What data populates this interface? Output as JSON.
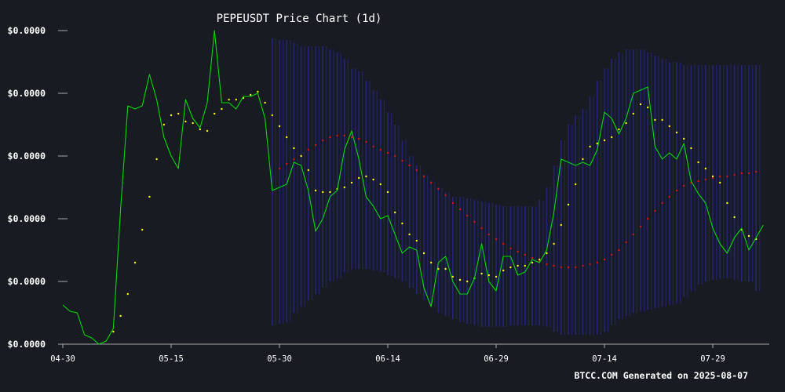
{
  "chart_data": {
    "type": "line",
    "title": "PEPEUSDT Price Chart (1d)",
    "footer": "BTCC.COM Generated on 2025-08-07",
    "xlabel": "",
    "ylabel": "",
    "x_ticks": [
      "04-30",
      "05-15",
      "05-30",
      "06-14",
      "06-29",
      "07-14",
      "07-29"
    ],
    "y_ticks": [
      "$0.0000",
      "$0.0000",
      "$0.0000",
      "$0.0000",
      "$0.0000",
      "$0.0000"
    ],
    "x_range": [
      "2025-04-30",
      "2025-08-09"
    ],
    "y_range": [
      0,
      100
    ],
    "grid": false,
    "colors": {
      "background": "#181b22",
      "price": "#00dd00",
      "ma_short": "#ffff00",
      "ma_long": "#dd1111",
      "band": "#23237a",
      "text": "#ffffff",
      "axis": "#aaaaaa"
    },
    "series": [
      {
        "values": [
          12.5,
          10.5,
          10.0,
          3.0,
          2.0,
          0.0,
          1.0,
          5.0,
          43.0,
          76.0,
          75.0,
          76.0,
          86.0,
          78.0,
          66.0,
          60.0,
          56.0,
          78.0,
          72.0,
          69.0,
          77.0,
          100.0,
          77.0,
          77.0,
          75.0,
          79.0,
          79.0,
          80.0,
          72.0,
          49.0,
          50.0,
          51.0,
          58.0,
          57.0,
          49.0,
          36.0,
          40.0,
          47.0,
          49.0,
          62.0,
          68.0,
          59.0,
          47.0,
          44.0,
          40.0,
          41.0,
          35.0,
          29.0,
          31.0,
          30.0,
          18.0,
          12.0,
          26.0,
          28.0,
          20.0,
          16.0,
          16.0,
          21.0,
          32.0,
          20.0,
          17.0,
          28.0,
          28.0,
          22.0,
          23.0,
          27.0,
          26.0,
          30.0,
          42.0,
          59.0,
          58.0,
          57.0,
          58.0,
          57.0,
          62.0,
          74.0,
          72.0,
          67.0,
          72.0,
          80.0,
          81.0,
          82.0,
          63.0,
          59.0,
          61.0,
          59.0,
          64.0,
          52.0,
          48.0,
          45.0,
          37.0,
          32.0,
          29.0,
          34.0,
          37.0,
          30.0,
          34.0,
          38.0
        ]
      },
      {
        "values": [
          null,
          null,
          null,
          null,
          null,
          null,
          null,
          4.0,
          9.0,
          16.0,
          26.0,
          36.5,
          47.0,
          59.0,
          70.0,
          73.0,
          73.5,
          71.0,
          70.5,
          68.5,
          68.0,
          73.5,
          75.0,
          78.0,
          78.0,
          78.5,
          79.5,
          80.5,
          77.0,
          73.0,
          69.5,
          66.0,
          62.5,
          60.0,
          55.5,
          49.0,
          48.5,
          48.5,
          49.5,
          50.0,
          51.5,
          53.0,
          53.5,
          52.5,
          51.0,
          48.5,
          42.0,
          38.5,
          35.0,
          33.0,
          29.0,
          26.0,
          24.0,
          24.0,
          21.5,
          20.5,
          20.0,
          21.0,
          22.5,
          22.0,
          21.5,
          23.5,
          24.5,
          25.0,
          25.0,
          26.0,
          27.0,
          29.0,
          32.0,
          38.0,
          44.5,
          51.0,
          59.0,
          63.0,
          64.0,
          65.0,
          66.0,
          68.5,
          70.5,
          73.5,
          76.5,
          75.5,
          71.5,
          71.5,
          69.5,
          67.5,
          65.5,
          62.5,
          58.0,
          56.0,
          53.5,
          51.5,
          45.0,
          40.5,
          36.5,
          34.5,
          33.5
        ]
      },
      {
        "values": [
          null,
          null,
          null,
          null,
          null,
          null,
          null,
          null,
          null,
          null,
          null,
          null,
          null,
          null,
          null,
          null,
          null,
          null,
          null,
          null,
          null,
          null,
          null,
          null,
          null,
          null,
          null,
          null,
          null,
          null,
          56.0,
          57.5,
          59.0,
          60.0,
          62.0,
          63.5,
          65.0,
          66.0,
          66.5,
          66.5,
          66.0,
          65.5,
          64.5,
          63.0,
          62.0,
          61.0,
          60.0,
          58.5,
          57.0,
          55.5,
          53.5,
          51.5,
          49.5,
          47.5,
          45.0,
          43.0,
          41.0,
          39.0,
          37.0,
          35.0,
          33.5,
          32.0,
          30.5,
          29.5,
          28.5,
          27.5,
          26.5,
          25.5,
          25.0,
          24.5,
          24.5,
          24.5,
          25.0,
          25.5,
          26.0,
          27.0,
          28.5,
          30.0,
          32.5,
          35.0,
          37.5,
          40.0,
          42.5,
          45.0,
          47.0,
          49.0,
          50.5,
          51.5,
          52.0,
          52.5,
          53.0,
          53.5,
          53.5,
          54.0,
          54.5,
          54.5,
          55.0
        ]
      }
    ],
    "band": {
      "upper": [
        null,
        null,
        null,
        null,
        null,
        null,
        null,
        null,
        null,
        null,
        null,
        null,
        null,
        null,
        null,
        null,
        null,
        null,
        null,
        null,
        null,
        null,
        null,
        null,
        null,
        null,
        null,
        null,
        null,
        97.5,
        97.0,
        97.0,
        96.0,
        95.0,
        95.0,
        95.0,
        95.0,
        94.0,
        93.0,
        91.0,
        88.0,
        87.0,
        84.0,
        81.0,
        78.0,
        74.0,
        70.0,
        65.0,
        60.0,
        57.0,
        54.0,
        52.0,
        50.0,
        48.5,
        47.0,
        47.0,
        46.5,
        46.0,
        45.5,
        45.0,
        44.5,
        44.0,
        44.0,
        44.0,
        44.0,
        44.0,
        46.0,
        50.0,
        57.0,
        65.0,
        70.0,
        73.0,
        75.0,
        79.0,
        84.0,
        88.0,
        91.0,
        93.0,
        94.0,
        94.0,
        94.0,
        93.0,
        92.0,
        91.0,
        90.0,
        90.0,
        89.0,
        89.0,
        89.0,
        89.0,
        89.0,
        89.0,
        89.0,
        89.0,
        89.0,
        89.0,
        89.0
      ],
      "lower": [
        null,
        null,
        null,
        null,
        null,
        null,
        null,
        null,
        null,
        null,
        null,
        null,
        null,
        null,
        null,
        null,
        null,
        null,
        null,
        null,
        null,
        null,
        null,
        null,
        null,
        null,
        null,
        null,
        null,
        6.0,
        6.5,
        7.0,
        10.0,
        12.0,
        14.0,
        16.0,
        18.0,
        20.0,
        21.0,
        23.0,
        24.0,
        24.0,
        24.0,
        23.5,
        23.0,
        22.0,
        21.0,
        20.0,
        18.0,
        16.0,
        14.0,
        12.0,
        10.0,
        9.0,
        8.0,
        7.0,
        6.5,
        6.0,
        5.5,
        5.5,
        5.5,
        5.5,
        6.0,
        6.0,
        6.0,
        6.0,
        6.0,
        5.5,
        4.0,
        3.0,
        3.0,
        3.0,
        3.0,
        3.0,
        3.0,
        4.0,
        6.0,
        8.0,
        9.0,
        10.0,
        10.5,
        11.0,
        11.5,
        12.0,
        12.5,
        13.0,
        15.0,
        17.0,
        19.0,
        20.0,
        20.5,
        21.0,
        21.0,
        20.5,
        20.0,
        20.0,
        17.0
      ]
    }
  }
}
